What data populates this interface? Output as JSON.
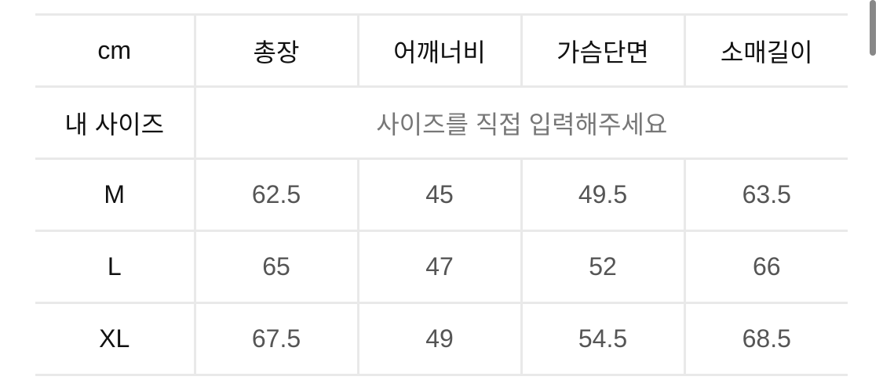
{
  "table": {
    "unit_label": "cm",
    "headers": [
      "총장",
      "어깨너비",
      "가슴단면",
      "소매길이"
    ],
    "my_size": {
      "label": "내 사이즈",
      "placeholder": "사이즈를 직접 입력해주세요"
    },
    "rows": [
      {
        "size": "M",
        "values": [
          "62.5",
          "45",
          "49.5",
          "63.5"
        ]
      },
      {
        "size": "L",
        "values": [
          "65",
          "47",
          "52",
          "66"
        ]
      },
      {
        "size": "XL",
        "values": [
          "67.5",
          "49",
          "54.5",
          "68.5"
        ]
      }
    ]
  }
}
